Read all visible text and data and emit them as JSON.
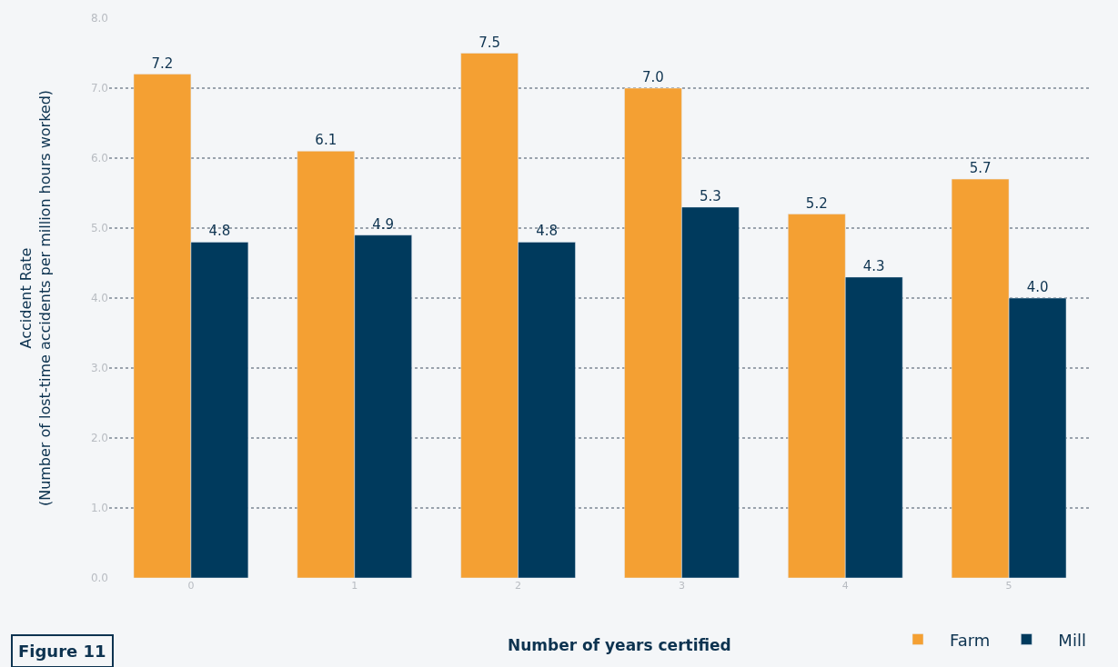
{
  "chart_data": {
    "type": "bar",
    "xlabel": "Number of years certified",
    "ylabel": "Accident Rate\n(Number of lost-time accidents per million hours worked)",
    "categories": [
      "0",
      "1",
      "2",
      "3",
      "4",
      "5"
    ],
    "series": [
      {
        "name": "Farm",
        "color": "#f4a033",
        "values": [
          7.2,
          6.1,
          7.5,
          7.0,
          5.2,
          5.7
        ],
        "value_labels": [
          "7.2",
          "6.1",
          "7.5",
          "7.0",
          "5.2",
          "5.7"
        ]
      },
      {
        "name": "Mill",
        "color": "#003a5d",
        "values": [
          4.8,
          4.9,
          4.8,
          5.3,
          4.3,
          4.0
        ],
        "value_labels": [
          "4.8",
          "4.9",
          "4.8",
          "5.3",
          "4.3",
          "4.0"
        ]
      }
    ],
    "ylim": [
      0,
      8
    ],
    "yticks": [
      {
        "value": 0,
        "label": "0.0"
      },
      {
        "value": 1,
        "label": "1.0"
      },
      {
        "value": 2,
        "label": "2.0"
      },
      {
        "value": 3,
        "label": "3.0"
      },
      {
        "value": 4,
        "label": "4.0"
      },
      {
        "value": 5,
        "label": "5.0"
      },
      {
        "value": 6,
        "label": "6.0"
      },
      {
        "value": 7,
        "label": "7.0"
      },
      {
        "value": 8,
        "label": "8.0"
      }
    ],
    "grid": "y",
    "legend": "bottom right",
    "annotations": [
      "Figure 11"
    ]
  }
}
